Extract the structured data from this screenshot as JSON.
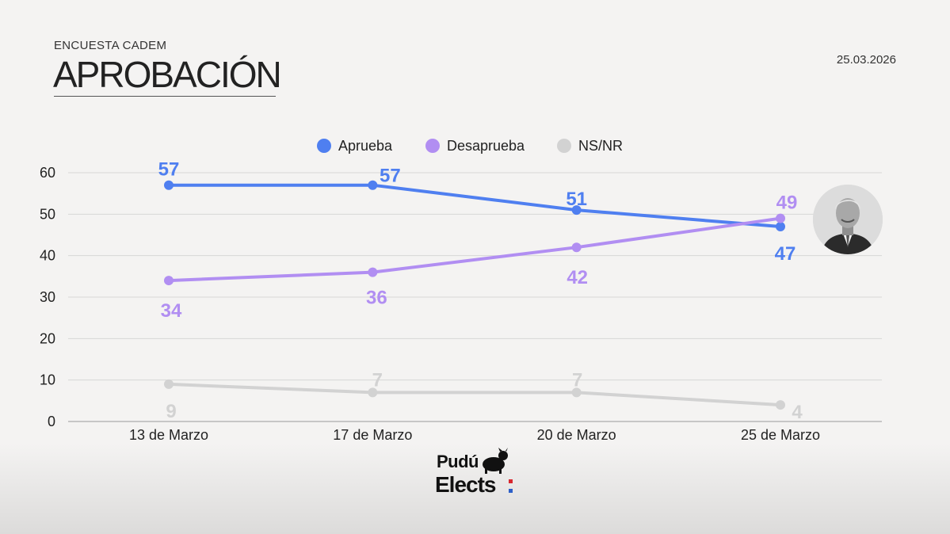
{
  "header": {
    "subtitle": "ENCUESTA CADEM",
    "title": "APROBACIÓN",
    "date": "25.03.2026"
  },
  "colors": {
    "aprueba": "#4f7ff0",
    "desaprueba": "#b18ef2",
    "nsnr": "#d2d2d2",
    "grid": "#d7d7d7"
  },
  "chart_data": {
    "type": "line",
    "categories": [
      "13 de Marzo",
      "17 de Marzo",
      "20 de Marzo",
      "25 de Marzo"
    ],
    "ylim": [
      0,
      60
    ],
    "yticks": [
      0,
      10,
      20,
      30,
      40,
      50,
      60
    ],
    "grid": true,
    "legend_position": "top-center",
    "title": "",
    "xlabel": "",
    "ylabel": "",
    "series": [
      {
        "name": "Aprueba",
        "values": [
          57,
          57,
          51,
          47
        ]
      },
      {
        "name": "Desaprueba",
        "values": [
          34,
          36,
          42,
          49
        ]
      },
      {
        "name": "NS/NR",
        "values": [
          9,
          7,
          7,
          4
        ]
      }
    ]
  },
  "logo": {
    "line1": "Pudú",
    "line2": "Elects"
  }
}
